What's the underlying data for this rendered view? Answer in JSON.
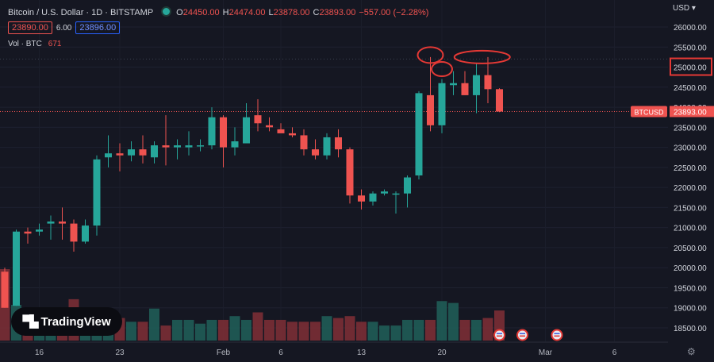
{
  "header": {
    "title": "Bitcoin / U.S. Dollar · 1D · BITSTAMP",
    "open_label": "O",
    "open": "24450.00",
    "high_label": "H",
    "high": "24474.00",
    "low_label": "L",
    "low": "23878.00",
    "close_label": "C",
    "close": "23893.00",
    "change": "−557.00 (−2.28%)"
  },
  "quote": {
    "bid": "23890.00",
    "spread": "6.00",
    "ask": "23896.00"
  },
  "volume": {
    "label": "Vol · BTC",
    "value": "671"
  },
  "currency": "USD",
  "symbol_tag": "BTCUSD",
  "logo_text": "TradingView",
  "colors": {
    "up": "#26a69a",
    "down": "#ef5350",
    "background": "#151722",
    "highlight": "#e53935"
  },
  "chart_data": {
    "type": "candlestick",
    "ylim": [
      18100,
      26200
    ],
    "y_ticks": [
      "26000.00",
      "25500.00",
      "25000.00",
      "24500.00",
      "24000.00",
      "23500.00",
      "23000.00",
      "22500.00",
      "22000.00",
      "21500.00",
      "21000.00",
      "20500.00",
      "20000.00",
      "19500.00",
      "19000.00",
      "18500.00"
    ],
    "highlighted_tick": "25000.00",
    "last_price": "23893.00",
    "x_labels": [
      {
        "label": "16",
        "index": 3
      },
      {
        "label": "23",
        "index": 10
      },
      {
        "label": "Feb",
        "index": 19
      },
      {
        "label": "6",
        "index": 24
      },
      {
        "label": "13",
        "index": 31
      },
      {
        "label": "20",
        "index": 38
      },
      {
        "label": "Mar",
        "index": 47
      },
      {
        "label": "6",
        "index": 53
      }
    ],
    "candles": [
      {
        "o": 19900,
        "h": 20000,
        "l": 19000,
        "c": 19000
      },
      {
        "o": 19050,
        "h": 20950,
        "l": 19050,
        "c": 20900
      },
      {
        "o": 20900,
        "h": 21000,
        "l": 20600,
        "c": 20850
      },
      {
        "o": 20900,
        "h": 21100,
        "l": 20800,
        "c": 20950
      },
      {
        "o": 21100,
        "h": 21300,
        "l": 20700,
        "c": 21150
      },
      {
        "o": 21150,
        "h": 21500,
        "l": 20700,
        "c": 21100
      },
      {
        "o": 21100,
        "h": 21200,
        "l": 20400,
        "c": 20650
      },
      {
        "o": 20650,
        "h": 21200,
        "l": 20600,
        "c": 21050
      },
      {
        "o": 21050,
        "h": 22800,
        "l": 20800,
        "c": 22700
      },
      {
        "o": 22750,
        "h": 23300,
        "l": 22500,
        "c": 22850
      },
      {
        "o": 22850,
        "h": 23100,
        "l": 22400,
        "c": 22800
      },
      {
        "o": 22800,
        "h": 23150,
        "l": 22650,
        "c": 22950
      },
      {
        "o": 22950,
        "h": 23300,
        "l": 22600,
        "c": 22800
      },
      {
        "o": 22750,
        "h": 23150,
        "l": 22600,
        "c": 23050
      },
      {
        "o": 23050,
        "h": 23800,
        "l": 22550,
        "c": 23000
      },
      {
        "o": 23000,
        "h": 23200,
        "l": 22700,
        "c": 23050
      },
      {
        "o": 23000,
        "h": 23400,
        "l": 22800,
        "c": 23050
      },
      {
        "o": 23050,
        "h": 23200,
        "l": 22900,
        "c": 23050
      },
      {
        "o": 23050,
        "h": 24000,
        "l": 22950,
        "c": 23750
      },
      {
        "o": 23750,
        "h": 23800,
        "l": 22500,
        "c": 23000
      },
      {
        "o": 23000,
        "h": 23500,
        "l": 22800,
        "c": 23150
      },
      {
        "o": 23100,
        "h": 24100,
        "l": 23100,
        "c": 23750
      },
      {
        "o": 23800,
        "h": 24200,
        "l": 23400,
        "c": 23600
      },
      {
        "o": 23550,
        "h": 23750,
        "l": 23400,
        "c": 23500
      },
      {
        "o": 23450,
        "h": 23600,
        "l": 23400,
        "c": 23350
      },
      {
        "o": 23350,
        "h": 23500,
        "l": 23250,
        "c": 23300
      },
      {
        "o": 23300,
        "h": 23450,
        "l": 22800,
        "c": 22950
      },
      {
        "o": 22950,
        "h": 23200,
        "l": 22700,
        "c": 22800
      },
      {
        "o": 22800,
        "h": 23350,
        "l": 22700,
        "c": 23250
      },
      {
        "o": 23250,
        "h": 23450,
        "l": 22750,
        "c": 22950
      },
      {
        "o": 22950,
        "h": 23000,
        "l": 21600,
        "c": 21800
      },
      {
        "o": 21800,
        "h": 21950,
        "l": 21450,
        "c": 21650
      },
      {
        "o": 21650,
        "h": 21900,
        "l": 21550,
        "c": 21850
      },
      {
        "o": 21850,
        "h": 21950,
        "l": 21800,
        "c": 21900
      },
      {
        "o": 21850,
        "h": 21900,
        "l": 21350,
        "c": 21850
      },
      {
        "o": 21850,
        "h": 22300,
        "l": 21500,
        "c": 22250
      },
      {
        "o": 22300,
        "h": 24400,
        "l": 22200,
        "c": 24350
      },
      {
        "o": 24300,
        "h": 25250,
        "l": 23400,
        "c": 23550
      },
      {
        "o": 23550,
        "h": 24700,
        "l": 23350,
        "c": 24600
      },
      {
        "o": 24550,
        "h": 24900,
        "l": 24300,
        "c": 24600
      },
      {
        "o": 24600,
        "h": 24900,
        "l": 24300,
        "c": 24300
      },
      {
        "o": 24300,
        "h": 25100,
        "l": 23850,
        "c": 24800
      },
      {
        "o": 24800,
        "h": 25250,
        "l": 24100,
        "c": 24450
      },
      {
        "o": 24450,
        "h": 24474,
        "l": 23878,
        "c": 23893
      }
    ],
    "volumes": [
      3.8,
      1.9,
      0.9,
      1.1,
      1.3,
      1.6,
      2.2,
      1.1,
      1.0,
      1.3,
      1.2,
      1.0,
      1.0,
      1.7,
      0.8,
      1.1,
      1.1,
      0.9,
      1.1,
      1.1,
      1.3,
      1.1,
      1.5,
      1.1,
      1.1,
      1.0,
      1.0,
      1.0,
      1.3,
      1.2,
      1.3,
      1.0,
      1.0,
      0.8,
      0.8,
      1.1,
      1.1,
      1.1,
      2.1,
      2.0,
      1.1,
      1.1,
      1.2,
      1.6
    ],
    "indicator_markers": [
      43,
      45,
      48
    ],
    "annotations": [
      {
        "shape": "ellipse",
        "center_index": 37,
        "center_price": 25300
      },
      {
        "shape": "ellipse",
        "center_index": 38,
        "center_price": 24950
      },
      {
        "shape": "ellipse",
        "center_index": 41.5,
        "center_price": 25250
      }
    ]
  }
}
